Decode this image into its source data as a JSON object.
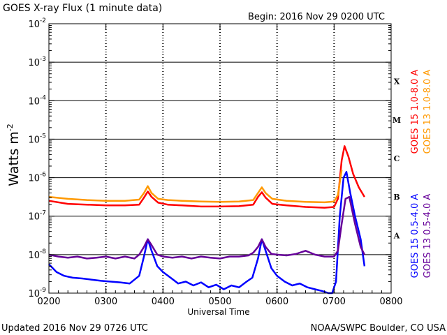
{
  "title": "GOES X-ray Flux (1 minute data)",
  "begin": "Begin: 2016 Nov 29 0200 UTC",
  "updated": "Updated 2016 Nov 29 0726 UTC",
  "credit": "NOAA/SWPC Boulder, CO USA",
  "chart_data": {
    "type": "line",
    "xlabel": "Universal Time",
    "ylabel": "Watts m",
    "ylabel_sup": "-2",
    "yscale": "log",
    "xlim": [
      0,
      360
    ],
    "ylim_exp": [
      -9,
      -2
    ],
    "grid": true,
    "x_ticks": [
      "0200",
      "0300",
      "0400",
      "0500",
      "0600",
      "0700",
      "0800"
    ],
    "x_tick_values": [
      0,
      60,
      120,
      180,
      240,
      300,
      360
    ],
    "y_tick_exponents": [
      -9,
      -8,
      -7,
      -6,
      -5,
      -4,
      -3,
      -2
    ],
    "flare_classes": [
      {
        "label": "A",
        "exp": -7.5
      },
      {
        "label": "B",
        "exp": -6.5
      },
      {
        "label": "C",
        "exp": -5.5
      },
      {
        "label": "M",
        "exp": -4.5
      },
      {
        "label": "X",
        "exp": -3.5
      }
    ],
    "legend_right_outer": [
      {
        "label": "GOES 15 1.0-8.0 A",
        "color": "#ff0000"
      },
      {
        "label": "GOES 13 1.0-8.0 A",
        "color": "#ff9900"
      }
    ],
    "legend_right_inner": [
      {
        "label": "GOES 15 0.5-4.0 A",
        "color": "#0000ff"
      },
      {
        "label": "GOES 13 0.5-4.0 A",
        "color": "#660099"
      }
    ],
    "series": [
      {
        "name": "GOES 15 1.0-8.0 A",
        "color": "#ff0000",
        "x": [
          0,
          20,
          40,
          60,
          80,
          95,
          100,
          104,
          108,
          115,
          125,
          140,
          160,
          180,
          200,
          215,
          220,
          224,
          228,
          235,
          250,
          270,
          290,
          300,
          304,
          308,
          311,
          315,
          320,
          326,
          332
        ],
        "y_exp": [
          -6.6,
          -6.68,
          -6.7,
          -6.72,
          -6.72,
          -6.7,
          -6.52,
          -6.36,
          -6.5,
          -6.65,
          -6.7,
          -6.72,
          -6.75,
          -6.75,
          -6.74,
          -6.7,
          -6.5,
          -6.38,
          -6.52,
          -6.68,
          -6.72,
          -6.76,
          -6.78,
          -6.76,
          -6.55,
          -5.55,
          -5.18,
          -5.45,
          -5.9,
          -6.25,
          -6.5
        ]
      },
      {
        "name": "GOES 13 1.0-8.0 A",
        "color": "#ff9900",
        "x": [
          0,
          20,
          40,
          60,
          80,
          95,
          100,
          104,
          108,
          115,
          125,
          140,
          160,
          180,
          200,
          215,
          220,
          224,
          228,
          235,
          250,
          270,
          290,
          300,
          304,
          308
        ],
        "y_exp": [
          -6.5,
          -6.55,
          -6.58,
          -6.6,
          -6.6,
          -6.57,
          -6.4,
          -6.22,
          -6.4,
          -6.55,
          -6.58,
          -6.6,
          -6.62,
          -6.63,
          -6.62,
          -6.58,
          -6.4,
          -6.25,
          -6.4,
          -6.55,
          -6.6,
          -6.63,
          -6.64,
          -6.62,
          -6.45,
          -5.8
        ]
      },
      {
        "name": "GOES 15 0.5-4.0 A",
        "color": "#0000ff",
        "x": [
          0,
          8,
          16,
          25,
          35,
          45,
          55,
          65,
          75,
          85,
          95,
          100,
          104,
          108,
          114,
          120,
          128,
          136,
          144,
          152,
          160,
          168,
          176,
          184,
          192,
          200,
          208,
          214,
          220,
          224,
          228,
          234,
          240,
          248,
          256,
          264,
          272,
          280,
          288,
          294,
          298,
          302,
          306,
          310,
          313,
          317,
          322,
          328,
          332
        ],
        "y_exp": [
          -8.25,
          -8.45,
          -8.55,
          -8.6,
          -8.62,
          -8.65,
          -8.68,
          -8.7,
          -8.72,
          -8.75,
          -8.55,
          -8.05,
          -7.6,
          -7.9,
          -8.3,
          -8.45,
          -8.6,
          -8.75,
          -8.7,
          -8.8,
          -8.72,
          -8.85,
          -8.78,
          -8.9,
          -8.8,
          -8.85,
          -8.7,
          -8.6,
          -8.1,
          -7.6,
          -7.9,
          -8.35,
          -8.55,
          -8.7,
          -8.8,
          -8.75,
          -8.85,
          -8.9,
          -8.95,
          -9.0,
          -9.0,
          -8.7,
          -7.0,
          -6.0,
          -5.85,
          -6.4,
          -7.0,
          -7.6,
          -8.3
        ]
      },
      {
        "name": "GOES 13 0.5-4.0 A",
        "color": "#660099",
        "x": [
          0,
          10,
          20,
          30,
          40,
          50,
          60,
          70,
          80,
          90,
          95,
          100,
          104,
          108,
          114,
          120,
          130,
          140,
          150,
          160,
          170,
          180,
          190,
          200,
          210,
          215,
          220,
          224,
          228,
          234,
          240,
          250,
          260,
          270,
          280,
          290,
          300,
          304,
          308,
          312,
          316,
          322,
          328,
          332
        ],
        "y_exp": [
          -8.0,
          -8.05,
          -8.08,
          -8.05,
          -8.1,
          -8.08,
          -8.05,
          -8.1,
          -8.05,
          -8.1,
          -8.0,
          -7.8,
          -7.6,
          -7.75,
          -8.0,
          -8.05,
          -8.08,
          -8.05,
          -8.1,
          -8.05,
          -8.08,
          -8.1,
          -8.05,
          -8.05,
          -8.02,
          -7.95,
          -7.8,
          -7.6,
          -7.8,
          -7.98,
          -8.0,
          -8.02,
          -7.98,
          -7.9,
          -8.0,
          -8.05,
          -8.05,
          -7.9,
          -7.2,
          -6.55,
          -6.5,
          -7.2,
          -7.8,
          -8.0
        ]
      }
    ]
  }
}
